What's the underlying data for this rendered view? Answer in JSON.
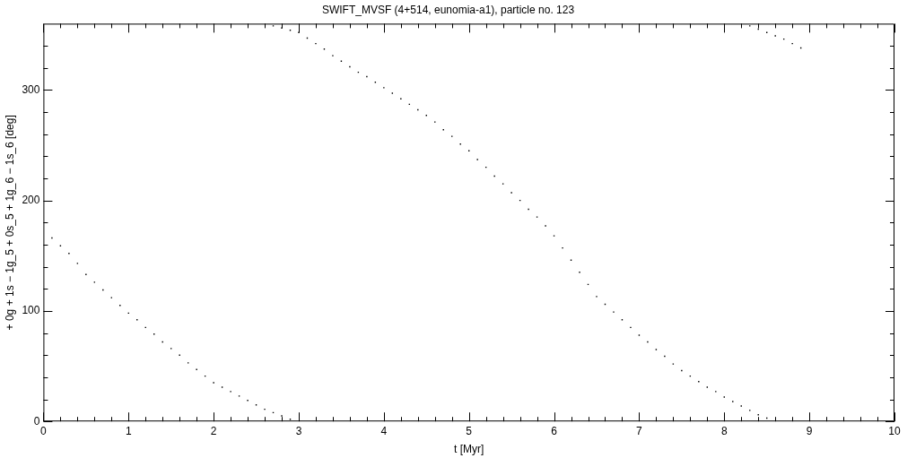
{
  "chart_data": {
    "type": "scatter",
    "title": "SWIFT_MVSF (4+514, eunomia-a1), particle no. 123",
    "xlabel": "t [Myr]",
    "ylabel": "+ 0g + 1s − 1g_5 + 0s_5 + 1g_6 − 1s_6 [deg]",
    "xlim": [
      0,
      10
    ],
    "ylim": [
      0,
      360
    ],
    "xticks": [
      0,
      {
        "value": 0.2,
        "label": null
      },
      {
        "value": 0.4,
        "label": null
      },
      {
        "value": 0.6,
        "label": null
      },
      {
        "value": 0.8,
        "label": null
      },
      1,
      {
        "value": 1.2,
        "label": null
      },
      {
        "value": 1.4,
        "label": null
      },
      {
        "value": 1.6,
        "label": null
      },
      {
        "value": 1.8,
        "label": null
      },
      2,
      {
        "value": 2.2,
        "label": null
      },
      {
        "value": 2.4,
        "label": null
      },
      {
        "value": 2.6,
        "label": null
      },
      {
        "value": 2.8,
        "label": null
      },
      3,
      {
        "value": 3.2,
        "label": null
      },
      {
        "value": 3.4,
        "label": null
      },
      {
        "value": 3.6,
        "label": null
      },
      {
        "value": 3.8,
        "label": null
      },
      4,
      {
        "value": 4.2,
        "label": null
      },
      {
        "value": 4.4,
        "label": null
      },
      {
        "value": 4.6,
        "label": null
      },
      {
        "value": 4.8,
        "label": null
      },
      5,
      {
        "value": 5.2,
        "label": null
      },
      {
        "value": 5.4,
        "label": null
      },
      {
        "value": 5.6,
        "label": null
      },
      {
        "value": 5.8,
        "label": null
      },
      6,
      {
        "value": 6.2,
        "label": null
      },
      {
        "value": 6.4,
        "label": null
      },
      {
        "value": 6.6,
        "label": null
      },
      {
        "value": 6.8,
        "label": null
      },
      7,
      {
        "value": 7.2,
        "label": null
      },
      {
        "value": 7.4,
        "label": null
      },
      {
        "value": 7.6,
        "label": null
      },
      {
        "value": 7.8,
        "label": null
      },
      8,
      {
        "value": 8.2,
        "label": null
      },
      {
        "value": 8.4,
        "label": null
      },
      {
        "value": 8.6,
        "label": null
      },
      {
        "value": 8.8,
        "label": null
      },
      9,
      {
        "value": 9.2,
        "label": null
      },
      {
        "value": 9.4,
        "label": null
      },
      {
        "value": 9.6,
        "label": null
      },
      {
        "value": 9.8,
        "label": null
      },
      10
    ],
    "yticks": [
      0,
      {
        "value": 20,
        "label": null
      },
      {
        "value": 40,
        "label": null
      },
      {
        "value": 60,
        "label": null
      },
      {
        "value": 80,
        "label": null
      },
      100,
      {
        "value": 120,
        "label": null
      },
      {
        "value": 140,
        "label": null
      },
      {
        "value": 160,
        "label": null
      },
      {
        "value": 180,
        "label": null
      },
      200,
      {
        "value": 220,
        "label": null
      },
      {
        "value": 240,
        "label": null
      },
      {
        "value": 260,
        "label": null
      },
      {
        "value": 280,
        "label": null
      },
      300,
      {
        "value": 320,
        "label": null
      },
      {
        "value": 340,
        "label": null
      }
    ],
    "grid": false,
    "legend": false,
    "marker": "square",
    "series": [
      {
        "color": "#000000",
        "x": [
          0.1,
          0.2,
          0.3,
          0.4,
          0.5,
          0.6,
          0.7,
          0.8,
          0.9,
          1.0,
          1.1,
          1.2,
          1.3,
          1.4,
          1.5,
          1.6,
          1.7,
          1.8,
          1.9,
          2.0,
          2.1,
          2.2,
          2.3,
          2.4,
          2.5,
          2.6,
          2.7,
          2.8,
          2.9,
          2.7,
          2.8,
          2.9,
          3.0,
          3.1,
          3.2,
          3.3,
          3.4,
          3.5,
          3.6,
          3.7,
          3.8,
          3.9,
          4.0,
          4.1,
          4.2,
          4.3,
          4.4,
          4.5,
          4.6,
          4.7,
          4.8,
          4.9,
          5.0,
          5.1,
          5.2,
          5.3,
          5.4,
          5.5,
          5.6,
          5.7,
          5.8,
          5.9,
          6.0,
          6.1,
          6.2,
          6.3,
          6.4,
          6.5,
          6.6,
          6.7,
          6.8,
          6.9,
          7.0,
          7.1,
          7.2,
          7.3,
          7.4,
          7.5,
          7.6,
          7.7,
          7.8,
          7.9,
          8.0,
          8.1,
          8.2,
          8.3,
          8.4,
          8.5,
          8.3,
          8.4,
          8.5,
          8.6,
          8.7,
          8.8,
          8.9
        ],
        "values": [
          166,
          159,
          152,
          143,
          133,
          126,
          119,
          112,
          105,
          98,
          92,
          85,
          79,
          72,
          66,
          60,
          53,
          47,
          41,
          35,
          31,
          27,
          23,
          19,
          15,
          11,
          8,
          5,
          2,
          358,
          356,
          354,
          352,
          347,
          342,
          337,
          331,
          326,
          321,
          316,
          312,
          307,
          302,
          297,
          292,
          287,
          282,
          277,
          271,
          264,
          258,
          251,
          245,
          237,
          230,
          222,
          215,
          207,
          200,
          192,
          185,
          177,
          168,
          157,
          146,
          135,
          124,
          113,
          106,
          99,
          92,
          85,
          78,
          72,
          65,
          59,
          52,
          46,
          41,
          36,
          31,
          27,
          22,
          18,
          14,
          10,
          6,
          3,
          358,
          355,
          352,
          349,
          346,
          342,
          338
        ]
      }
    ]
  }
}
